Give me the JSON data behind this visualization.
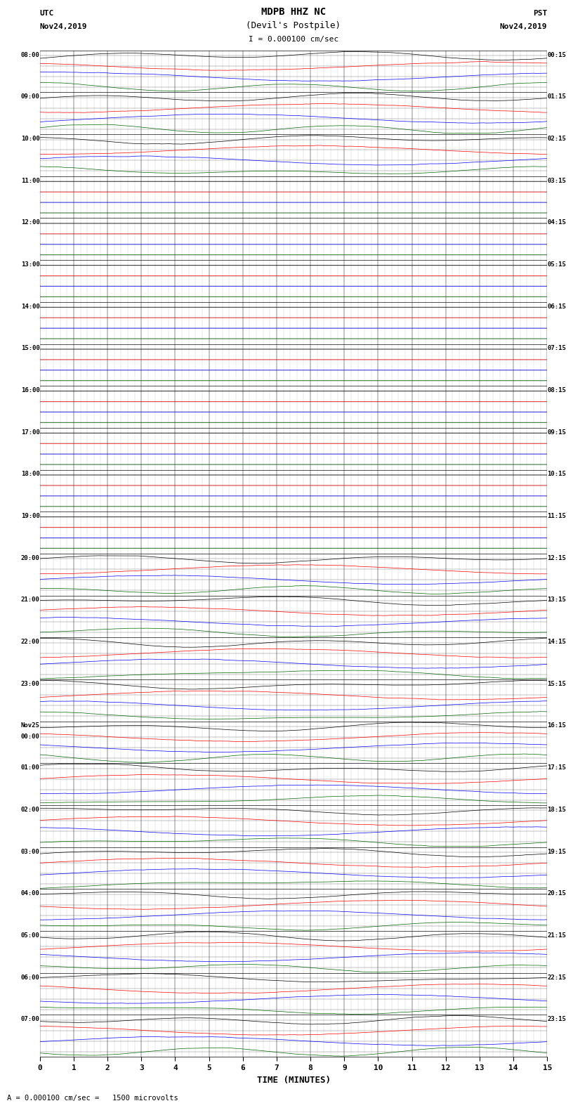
{
  "title_line1": "MDPB HHZ NC",
  "title_line2": "(Devil's Postpile)",
  "scale_label": "I = 0.000100 cm/sec",
  "scale_label2": "= 0.000100 cm/sec =   1500 microvolts",
  "utc_label": "UTC",
  "utc_date": "Nov24,2019",
  "pst_label": "PST",
  "pst_date": "Nov24,2019",
  "xlabel": "TIME (MINUTES)",
  "minutes_per_row": 15,
  "background_color": "#ffffff",
  "trace_colors": [
    "#000000",
    "#ff0000",
    "#0000ff",
    "#006600"
  ],
  "num_traces_per_row": 4,
  "rows": [
    {
      "label": "08:00",
      "right_label": "00:15",
      "active": true
    },
    {
      "label": "09:00",
      "right_label": "01:15",
      "active": true
    },
    {
      "label": "10:00",
      "right_label": "02:15",
      "active": true
    },
    {
      "label": "11:00",
      "right_label": "03:15",
      "active": false
    },
    {
      "label": "12:00",
      "right_label": "04:15",
      "active": false
    },
    {
      "label": "13:00",
      "right_label": "05:15",
      "active": false
    },
    {
      "label": "14:00",
      "right_label": "06:15",
      "active": false
    },
    {
      "label": "15:00",
      "right_label": "07:15",
      "active": false
    },
    {
      "label": "16:00",
      "right_label": "08:15",
      "active": false
    },
    {
      "label": "17:00",
      "right_label": "09:15",
      "active": false
    },
    {
      "label": "18:00",
      "right_label": "10:15",
      "active": false
    },
    {
      "label": "19:00",
      "right_label": "11:15",
      "active": false
    },
    {
      "label": "20:00",
      "right_label": "12:15",
      "active": true
    },
    {
      "label": "21:00",
      "right_label": "13:15",
      "active": true
    },
    {
      "label": "22:00",
      "right_label": "14:15",
      "active": true
    },
    {
      "label": "23:00",
      "right_label": "15:15",
      "active": true
    },
    {
      "label": "Nov25\n00:00",
      "right_label": "16:15",
      "active": true
    },
    {
      "label": "01:00",
      "right_label": "17:15",
      "active": true
    },
    {
      "label": "02:00",
      "right_label": "18:15",
      "active": true
    },
    {
      "label": "03:00",
      "right_label": "19:15",
      "active": true
    },
    {
      "label": "04:00",
      "right_label": "20:15",
      "active": true
    },
    {
      "label": "05:00",
      "right_label": "21:15",
      "active": true
    },
    {
      "label": "06:00",
      "right_label": "22:15",
      "active": true
    },
    {
      "label": "07:00",
      "right_label": "23:15",
      "active": true
    }
  ],
  "n_points": 1800,
  "amp_active": 0.11,
  "amp_inactive": 0.0,
  "freq_per_minute": 8.0,
  "seed": 42,
  "grid_color": "#000000",
  "grid_lw": 0.4,
  "trace_lw": 0.5
}
